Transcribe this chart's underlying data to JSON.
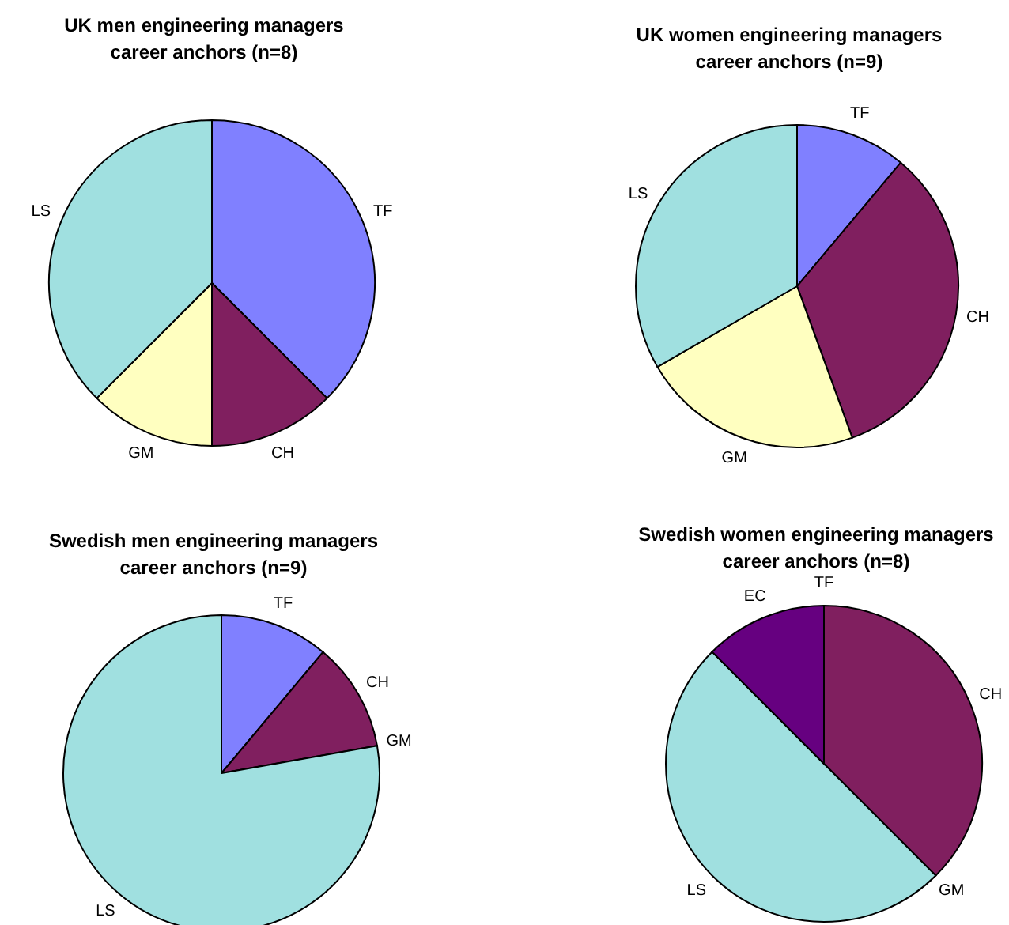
{
  "chart_data": [
    {
      "type": "pie",
      "title": "UK men engineering managers career anchors (n=8)",
      "categories": [
        "TF",
        "CH",
        "GM",
        "LS"
      ],
      "values": [
        37.5,
        12.5,
        12.5,
        37.5
      ],
      "colors": [
        "#8080ff",
        "#801f5f",
        "#ffffc0",
        "#a0e0e0"
      ]
    },
    {
      "type": "pie",
      "title": "UK women engineering managers career anchors (n=9)",
      "categories": [
        "TF",
        "CH",
        "GM",
        "LS"
      ],
      "values": [
        11.11,
        33.33,
        22.22,
        33.34
      ],
      "colors": [
        "#8080ff",
        "#801f5f",
        "#ffffc0",
        "#a0e0e0"
      ]
    },
    {
      "type": "pie",
      "title": "Swedish men engineering managers career anchors (n=9)",
      "categories": [
        "TF",
        "CH",
        "GM",
        "LS"
      ],
      "values": [
        11.11,
        11.11,
        0,
        77.78
      ],
      "colors": [
        "#8080ff",
        "#801f5f",
        "#ffffc0",
        "#a0e0e0"
      ]
    },
    {
      "type": "pie",
      "title": "Swedish women engineering managers career anchors (n=8)",
      "categories": [
        "TF",
        "CH",
        "GM",
        "LS",
        "EC"
      ],
      "values": [
        0,
        37.5,
        0,
        50,
        12.5
      ],
      "colors": [
        "#8080ff",
        "#801f5f",
        "#ffffc0",
        "#a0e0e0",
        "#660080"
      ]
    }
  ]
}
